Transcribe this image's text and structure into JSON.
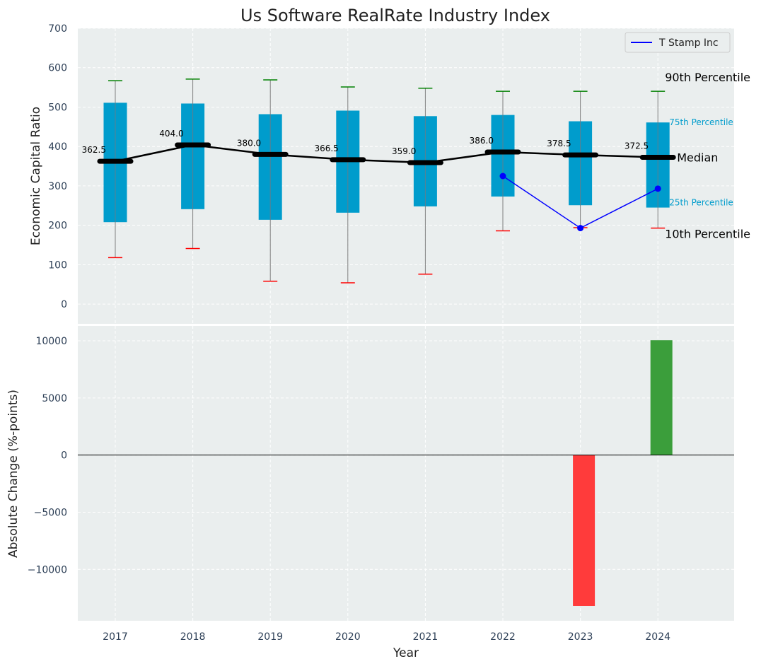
{
  "chart_data": [
    {
      "type": "box",
      "title": "Us Software RealRate Industry Index",
      "ylabel": "Economic Capital Ratio",
      "ylim": [
        -50,
        700
      ],
      "yticks": [
        0,
        100,
        200,
        300,
        400,
        500,
        600,
        700
      ],
      "grid": true,
      "categories": [
        "2017",
        "2018",
        "2019",
        "2020",
        "2021",
        "2022",
        "2023",
        "2024"
      ],
      "p90": [
        567,
        571,
        569,
        551,
        548,
        540,
        540,
        540
      ],
      "p75": [
        511,
        509,
        482,
        491,
        477,
        480,
        464,
        461
      ],
      "median": [
        362.5,
        404.0,
        380.0,
        366.5,
        359.0,
        386.0,
        378.5,
        372.5
      ],
      "median_labels": [
        "362.5",
        "404.0",
        "380.0",
        "366.5",
        "359.0",
        "386.0",
        "378.5",
        "372.5"
      ],
      "p25": [
        208,
        241,
        214,
        232,
        248,
        273,
        251,
        245
      ],
      "p10": [
        118,
        141,
        58,
        54,
        76,
        186,
        194,
        193
      ],
      "company_series": {
        "name": "T Stamp Inc",
        "categories": [
          "2022",
          "2023",
          "2024"
        ],
        "values": [
          325,
          193,
          293
        ],
        "color": "#0000ff"
      },
      "legend": {
        "position": "top-right",
        "entries": [
          "T Stamp Inc"
        ]
      },
      "percentile_labels": {
        "p90": "90th Percentile",
        "p75": "75th Percentile",
        "median": "Median",
        "p25": "25th Percentile",
        "p10": "10th Percentile"
      },
      "colors": {
        "box": "#009ccc",
        "median": "#000000",
        "p90_cap": "#008000",
        "p10_cap": "#ff0000",
        "whisker": "#808080",
        "background": "#eaeeee"
      }
    },
    {
      "type": "bar",
      "xlabel": "Year",
      "ylabel": "Absolute Change (%-points)",
      "ylim": [
        -14500,
        11300
      ],
      "yticks": [
        -10000,
        -5000,
        0,
        5000,
        10000
      ],
      "ytick_labels": [
        "−10000",
        "−5000",
        "0",
        "5000",
        "10000"
      ],
      "grid": true,
      "categories": [
        "2017",
        "2018",
        "2019",
        "2020",
        "2021",
        "2022",
        "2023",
        "2024"
      ],
      "values": [
        null,
        null,
        null,
        null,
        null,
        null,
        -13200,
        10050
      ],
      "colors": {
        "positive": "#3b9e3b",
        "negative": "#ff3b3b",
        "zero_line": "#000000",
        "background": "#eaeeee"
      }
    }
  ]
}
